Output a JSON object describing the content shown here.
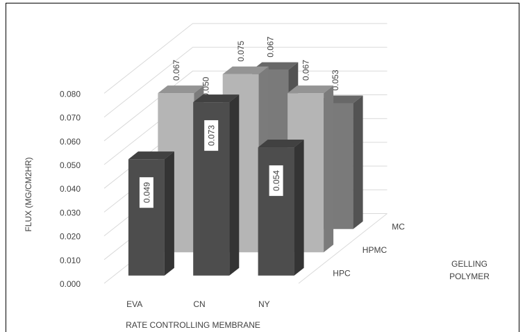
{
  "chart_data": {
    "type": "bar",
    "subtype": "3d-column",
    "title": "",
    "xlabel": "RATE CONTROLLING MEMBRANE",
    "ylabel": "FLUX (MG/CM2HR)",
    "zlabel": "GELLING POLYMER",
    "categories": [
      "EVA",
      "CN",
      "NY"
    ],
    "ylim": [
      0,
      0.08
    ],
    "yticks": [
      "0.000",
      "0.010",
      "0.020",
      "0.030",
      "0.040",
      "0.050",
      "0.060",
      "0.070",
      "0.080"
    ],
    "series": [
      {
        "name": "HPC",
        "values": [
          0.049,
          0.073,
          0.054
        ],
        "labels": [
          "0.049",
          "0.073",
          "0.054"
        ],
        "color": "#4d4d4d"
      },
      {
        "name": "HPMC",
        "values": [
          0.067,
          0.075,
          0.067
        ],
        "labels": [
          "0.067",
          "0.075",
          "0.067"
        ],
        "color": "#b5b5b5"
      },
      {
        "name": "MC",
        "values": [
          0.05,
          0.067,
          0.053
        ],
        "labels": [
          "0.050",
          "0.067",
          "0.053"
        ],
        "color": "#7a7a7a"
      }
    ],
    "grid": true,
    "legend": "none"
  }
}
